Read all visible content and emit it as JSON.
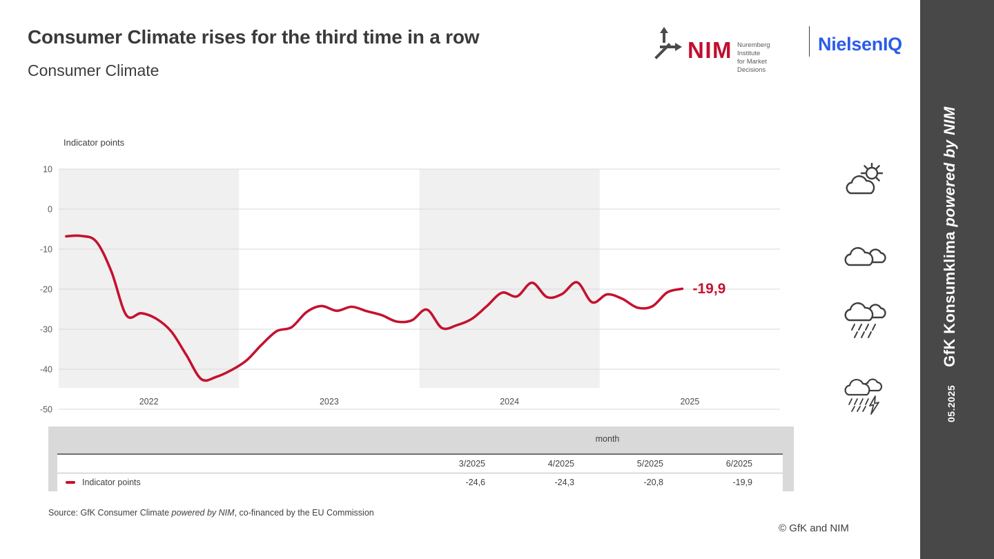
{
  "header": {
    "title": "Consumer Climate rises for the third time in a row",
    "subtitle": "Consumer Climate"
  },
  "logos": {
    "nim_wordmark": "NIM",
    "nim_institute_line1": "Nuremberg Institute",
    "nim_institute_line2": "for Market Decisions",
    "nim_red": "#c20e2e",
    "nielseniq_wordmark": "NielsenIQ",
    "nielseniq_blue": "#2b5ce8"
  },
  "sidebar": {
    "edition": "05.2025",
    "brand": "GfK Konsumklima",
    "brand_suffix": " powered by NIM",
    "background": "#484848"
  },
  "chart_data": {
    "type": "line",
    "axis_title": "Indicator points",
    "ylabel": "Indicator points",
    "ylim": [
      -50,
      10
    ],
    "y_ticks": [
      10,
      0,
      -10,
      -20,
      -30,
      -40,
      -50
    ],
    "x_tick_labels": [
      "2022",
      "2023",
      "2024",
      "2025"
    ],
    "grid": true,
    "band_color": "#f0f0f0",
    "grid_color": "#d9d9d9",
    "line_color": "#c4122f",
    "end_label": "-19,9",
    "series": [
      {
        "name": "Indicator points",
        "start_month": "1/2022",
        "end_month": "6/2025",
        "values": [
          -6.8,
          -6.7,
          -8.1,
          -15.5,
          -26.5,
          -26.0,
          -27.4,
          -30.6,
          -36.5,
          -42.5,
          -41.9,
          -40.2,
          -37.8,
          -33.9,
          -30.5,
          -29.5,
          -25.7,
          -24.2,
          -25.4,
          -24.4,
          -25.5,
          -26.5,
          -28.1,
          -27.8,
          -25.1,
          -29.7,
          -29.0,
          -27.4,
          -24.2,
          -20.9,
          -21.8,
          -18.4,
          -22.0,
          -21.2,
          -18.3,
          -23.3,
          -21.3,
          -22.4,
          -24.6,
          -24.3,
          -20.8,
          -19.9
        ]
      }
    ]
  },
  "table": {
    "group_header": "month",
    "columns": [
      "3/2025",
      "4/2025",
      "5/2025",
      "6/2025"
    ],
    "rows": [
      {
        "label": "Indicator points",
        "values": [
          "-24,6",
          "-24,3",
          "-20,8",
          "-19,9"
        ]
      }
    ]
  },
  "weather_icons": [
    "partly-sunny-icon",
    "cloudy-icon",
    "rain-icon",
    "storm-icon"
  ],
  "footer": {
    "source_prefix": "Source: GfK Consumer Climate ",
    "source_italic": "powered by NIM",
    "source_suffix": ", co-financed by the EU Commission",
    "copyright": "© GfK and NIM"
  }
}
